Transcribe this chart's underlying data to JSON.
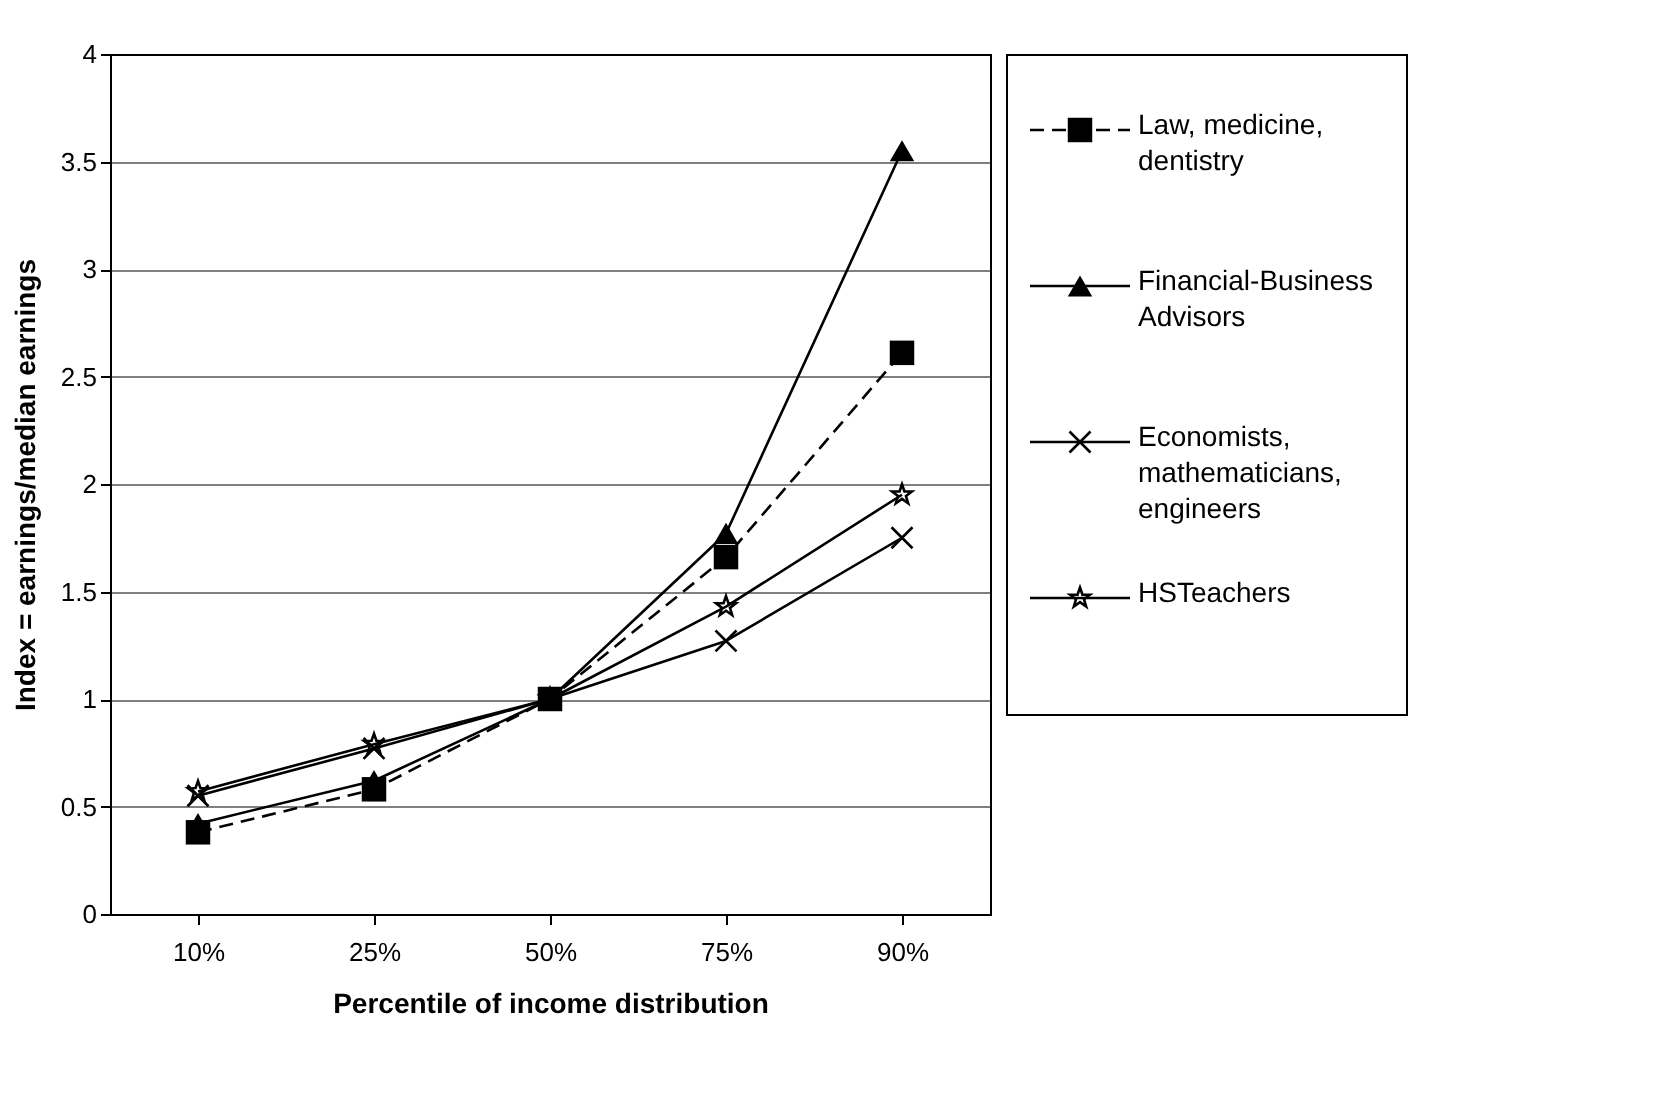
{
  "chart_data": {
    "type": "line",
    "xlabel": "Percentile of income distribution",
    "ylabel": "Index = earnings/median earnings",
    "categories": [
      "10%",
      "25%",
      "50%",
      "75%",
      "90%"
    ],
    "series": [
      {
        "name": "Law, medicine, dentistry",
        "color": "#000000",
        "marker": "square",
        "line_style": "dashed",
        "values": [
          0.38,
          0.58,
          1,
          1.66,
          2.61
        ]
      },
      {
        "name": "Financial-Business Advisors",
        "color": "#000000",
        "marker": "triangle",
        "line_style": "solid",
        "values": [
          0.42,
          0.62,
          1,
          1.77,
          3.55
        ]
      },
      {
        "name": "Economists, mathematicians, engineers",
        "color": "#000000",
        "marker": "cross",
        "line_style": "solid",
        "values": [
          0.55,
          0.77,
          1,
          1.27,
          1.75
        ]
      },
      {
        "name": "HSTeachers",
        "color": "#000000",
        "marker": "star",
        "line_style": "solid",
        "values": [
          0.57,
          0.79,
          1,
          1.43,
          1.95
        ]
      }
    ],
    "ylim": [
      0,
      4
    ],
    "yticks": [
      0,
      0.5,
      1,
      1.5,
      2,
      2.5,
      3,
      3.5,
      4
    ],
    "grid": "y",
    "legend": "right"
  }
}
